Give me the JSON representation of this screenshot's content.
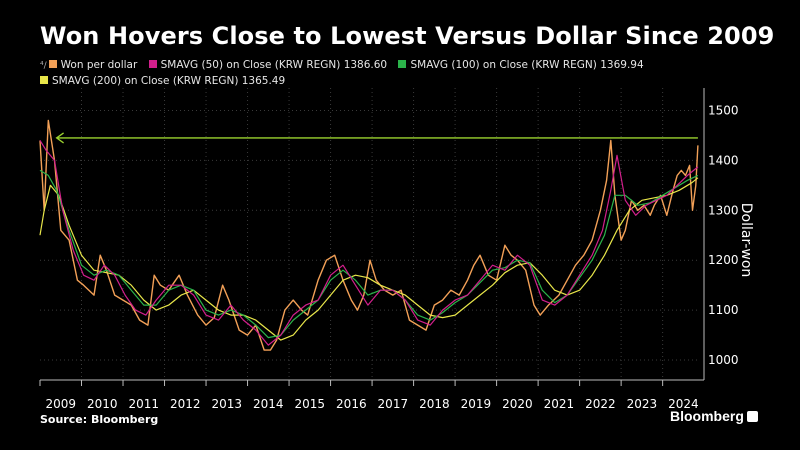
{
  "title": "Won Hovers Close to Lowest Versus Dollar Since 2009",
  "legend": [
    {
      "glyph": "⁴/",
      "label": "Won per dollar",
      "color": "#f2a057"
    },
    {
      "label": "SMAVG (50)  on Close (KRW REGN) 1386.60",
      "color": "#d21f8c"
    },
    {
      "label": "SMAVG (100)  on Close (KRW REGN) 1369.94",
      "color": "#2bb34a"
    },
    {
      "label": "SMAVG (200)  on Close (KRW REGN) 1365.49",
      "color": "#e8e64a"
    }
  ],
  "source": "Source: Bloomberg",
  "brand": "Bloomberg",
  "chart_data": {
    "type": "line",
    "ylabel": "Dollar-won",
    "ylim": [
      960,
      1545
    ],
    "xlim": [
      2009.0,
      2024.9
    ],
    "yticks": [
      1000,
      1100,
      1200,
      1300,
      1400,
      1500
    ],
    "xticks": [
      "2009",
      "2010",
      "2011",
      "2012",
      "2013",
      "2014",
      "2015",
      "2016",
      "2017",
      "2018",
      "2019",
      "2020",
      "2021",
      "2022",
      "2023",
      "2024"
    ],
    "grid": true,
    "annotation": {
      "type": "arrow",
      "y": 1445,
      "x_from": 2024.85,
      "x_to": 2009.4,
      "color": "#9bd22f"
    },
    "series": [
      {
        "name": "Won per dollar",
        "color": "#f2a057",
        "x": [
          2009.0,
          2009.1,
          2009.2,
          2009.35,
          2009.5,
          2009.7,
          2009.9,
          2010.05,
          2010.3,
          2010.45,
          2010.6,
          2010.8,
          2011.0,
          2011.2,
          2011.4,
          2011.6,
          2011.75,
          2011.9,
          2012.1,
          2012.35,
          2012.55,
          2012.8,
          2013.0,
          2013.2,
          2013.4,
          2013.55,
          2013.8,
          2014.0,
          2014.2,
          2014.4,
          2014.55,
          2014.7,
          2014.9,
          2015.1,
          2015.3,
          2015.45,
          2015.7,
          2015.9,
          2016.1,
          2016.3,
          2016.5,
          2016.65,
          2016.8,
          2016.95,
          2017.1,
          2017.3,
          2017.5,
          2017.7,
          2017.9,
          2018.1,
          2018.3,
          2018.5,
          2018.7,
          2018.9,
          2019.1,
          2019.3,
          2019.45,
          2019.6,
          2019.8,
          2020.0,
          2020.2,
          2020.35,
          2020.5,
          2020.7,
          2020.9,
          2021.05,
          2021.25,
          2021.5,
          2021.7,
          2021.9,
          2022.1,
          2022.3,
          2022.5,
          2022.65,
          2022.75,
          2022.85,
          2023.0,
          2023.1,
          2023.25,
          2023.4,
          2023.55,
          2023.7,
          2023.8,
          2023.95,
          2024.1,
          2024.25,
          2024.35,
          2024.45,
          2024.55,
          2024.65,
          2024.72,
          2024.8,
          2024.85
        ],
        "values": [
          1440,
          1300,
          1480,
          1400,
          1260,
          1240,
          1160,
          1150,
          1130,
          1210,
          1180,
          1130,
          1120,
          1110,
          1080,
          1070,
          1170,
          1150,
          1140,
          1170,
          1130,
          1090,
          1070,
          1085,
          1150,
          1120,
          1060,
          1050,
          1070,
          1020,
          1020,
          1040,
          1100,
          1120,
          1100,
          1090,
          1160,
          1200,
          1210,
          1160,
          1120,
          1100,
          1130,
          1200,
          1160,
          1140,
          1130,
          1140,
          1080,
          1070,
          1060,
          1110,
          1120,
          1140,
          1130,
          1160,
          1190,
          1210,
          1170,
          1160,
          1230,
          1210,
          1200,
          1180,
          1110,
          1090,
          1110,
          1130,
          1160,
          1190,
          1210,
          1240,
          1300,
          1360,
          1440,
          1330,
          1240,
          1260,
          1320,
          1300,
          1310,
          1290,
          1310,
          1330,
          1290,
          1340,
          1370,
          1380,
          1370,
          1390,
          1300,
          1350,
          1430
        ]
      },
      {
        "name": "SMAVG (50) on Close (KRW REGN)",
        "color": "#d21f8c",
        "x": [
          2009.0,
          2009.15,
          2009.35,
          2009.55,
          2009.8,
          2010.05,
          2010.3,
          2010.55,
          2010.8,
          2011.05,
          2011.3,
          2011.55,
          2011.8,
          2012.1,
          2012.4,
          2012.7,
          2013.0,
          2013.3,
          2013.6,
          2013.9,
          2014.2,
          2014.5,
          2014.8,
          2015.1,
          2015.4,
          2015.7,
          2016.0,
          2016.3,
          2016.6,
          2016.9,
          2017.2,
          2017.5,
          2017.8,
          2018.1,
          2018.4,
          2018.7,
          2019.0,
          2019.3,
          2019.6,
          2019.9,
          2020.2,
          2020.5,
          2020.8,
          2021.1,
          2021.4,
          2021.7,
          2022.0,
          2022.3,
          2022.55,
          2022.75,
          2022.9,
          2023.1,
          2023.35,
          2023.6,
          2023.85,
          2024.1,
          2024.35,
          2024.6,
          2024.85
        ],
        "values": [
          1440,
          1420,
          1400,
          1300,
          1220,
          1170,
          1160,
          1190,
          1170,
          1130,
          1100,
          1090,
          1120,
          1150,
          1150,
          1130,
          1090,
          1080,
          1110,
          1080,
          1060,
          1030,
          1050,
          1090,
          1110,
          1120,
          1170,
          1190,
          1150,
          1110,
          1140,
          1140,
          1120,
          1080,
          1070,
          1100,
          1120,
          1130,
          1160,
          1190,
          1180,
          1210,
          1190,
          1120,
          1110,
          1130,
          1170,
          1210,
          1260,
          1340,
          1410,
          1320,
          1290,
          1310,
          1320,
          1330,
          1350,
          1370,
          1387
        ]
      },
      {
        "name": "SMAVG (100) on Close (KRW REGN)",
        "color": "#2bb34a",
        "x": [
          2009.0,
          2009.2,
          2009.4,
          2009.7,
          2010.0,
          2010.3,
          2010.6,
          2010.9,
          2011.2,
          2011.5,
          2011.8,
          2012.1,
          2012.4,
          2012.7,
          2013.0,
          2013.3,
          2013.6,
          2013.9,
          2014.2,
          2014.5,
          2014.8,
          2015.1,
          2015.4,
          2015.7,
          2016.0,
          2016.3,
          2016.6,
          2016.9,
          2017.2,
          2017.5,
          2017.8,
          2018.1,
          2018.4,
          2018.7,
          2019.0,
          2019.3,
          2019.6,
          2019.9,
          2020.2,
          2020.5,
          2020.8,
          2021.1,
          2021.4,
          2021.7,
          2022.0,
          2022.3,
          2022.6,
          2022.85,
          2023.1,
          2023.4,
          2023.7,
          2024.0,
          2024.3,
          2024.6,
          2024.85
        ],
        "values": [
          1380,
          1370,
          1340,
          1260,
          1190,
          1170,
          1180,
          1170,
          1140,
          1110,
          1110,
          1140,
          1150,
          1140,
          1100,
          1090,
          1100,
          1090,
          1070,
          1045,
          1050,
          1080,
          1100,
          1120,
          1160,
          1180,
          1160,
          1130,
          1140,
          1140,
          1120,
          1090,
          1080,
          1095,
          1115,
          1130,
          1155,
          1180,
          1185,
          1200,
          1195,
          1140,
          1115,
          1130,
          1165,
          1200,
          1250,
          1330,
          1330,
          1310,
          1315,
          1330,
          1345,
          1360,
          1370
        ]
      },
      {
        "name": "SMAVG (200) on Close (KRW REGN)",
        "color": "#e8e64a",
        "x": [
          2009.0,
          2009.1,
          2009.25,
          2009.45,
          2009.7,
          2010.0,
          2010.3,
          2010.6,
          2010.9,
          2011.2,
          2011.5,
          2011.8,
          2012.1,
          2012.4,
          2012.7,
          2013.0,
          2013.3,
          2013.6,
          2013.9,
          2014.2,
          2014.5,
          2014.8,
          2015.1,
          2015.4,
          2015.7,
          2016.0,
          2016.3,
          2016.6,
          2016.9,
          2017.2,
          2017.5,
          2017.8,
          2018.1,
          2018.4,
          2018.7,
          2019.0,
          2019.3,
          2019.6,
          2019.9,
          2020.2,
          2020.5,
          2020.8,
          2021.1,
          2021.4,
          2021.7,
          2022.0,
          2022.3,
          2022.6,
          2022.9,
          2023.2,
          2023.5,
          2023.8,
          2024.1,
          2024.4,
          2024.7,
          2024.85
        ],
        "values": [
          1250,
          1300,
          1350,
          1330,
          1270,
          1210,
          1180,
          1175,
          1170,
          1150,
          1120,
          1100,
          1110,
          1130,
          1140,
          1120,
          1100,
          1090,
          1090,
          1080,
          1060,
          1040,
          1050,
          1080,
          1100,
          1130,
          1160,
          1170,
          1165,
          1150,
          1140,
          1130,
          1110,
          1090,
          1085,
          1090,
          1110,
          1130,
          1150,
          1175,
          1190,
          1195,
          1170,
          1140,
          1130,
          1140,
          1170,
          1210,
          1260,
          1300,
          1320,
          1325,
          1330,
          1340,
          1355,
          1365
        ]
      }
    ]
  }
}
